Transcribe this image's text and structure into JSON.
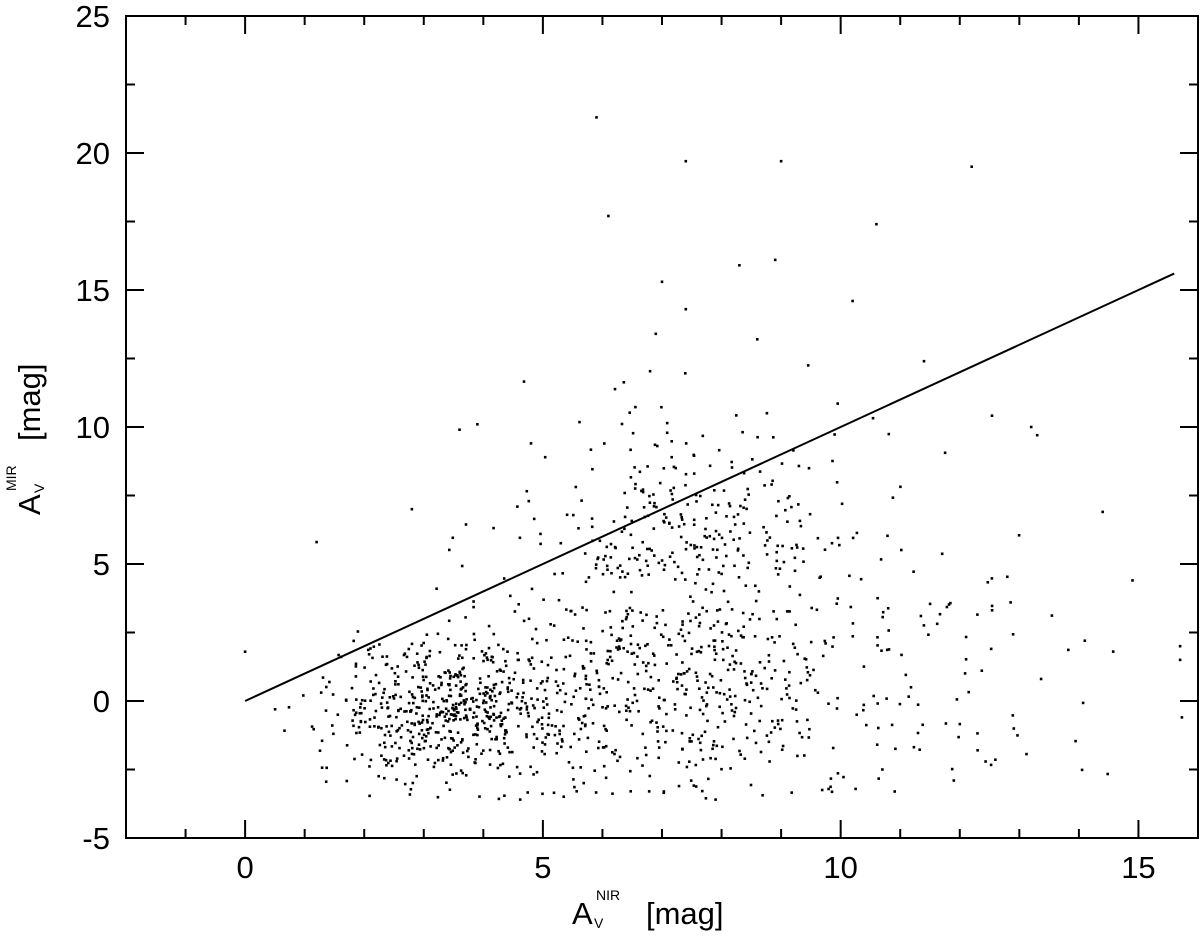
{
  "chart_data": {
    "type": "scatter",
    "title": "",
    "xlabel": {
      "base": "A",
      "sub": "V",
      "sup": "NIR",
      "unit": "[mag]"
    },
    "ylabel": {
      "base": "A",
      "sub": "V",
      "sup": "MIR",
      "unit": "[mag]"
    },
    "xlim": [
      -2,
      16
    ],
    "ylim": [
      -5,
      25
    ],
    "x_ticks": [
      "0",
      "5",
      "10",
      "15"
    ],
    "y_ticks": [
      "-5",
      "0",
      "5",
      "10",
      "15",
      "20",
      "25"
    ],
    "grid": false,
    "legend": "none",
    "marker_color": "#000000",
    "reference_line": {
      "x": [
        0,
        15.6
      ],
      "y": [
        0,
        15.6
      ]
    },
    "highlighted_points": {
      "x": [
        5.9,
        7.4,
        9.0,
        12.2,
        6.1,
        10.6,
        8.3,
        8.9,
        7.0,
        10.2,
        7.4,
        8.6,
        11.4,
        3.6,
        3.9,
        13.2,
        13.3,
        4.8,
        2.8,
        1.2,
        0.0,
        15.7,
        15.7,
        14.9,
        14.1,
        14.4,
        11.9,
        12.3,
        7.9,
        10.7
      ],
      "y": [
        21.3,
        19.7,
        19.7,
        19.5,
        17.7,
        17.4,
        15.9,
        16.1,
        15.3,
        14.6,
        14.3,
        13.2,
        12.4,
        9.9,
        10.1,
        10.0,
        9.7,
        9.4,
        7.0,
        5.8,
        1.8,
        2.0,
        1.5,
        4.4,
        2.2,
        6.9,
        -2.9,
        -1.8,
        -3.6,
        -2.5
      ]
    },
    "series": [
      {
        "n": 1500
      }
    ]
  }
}
